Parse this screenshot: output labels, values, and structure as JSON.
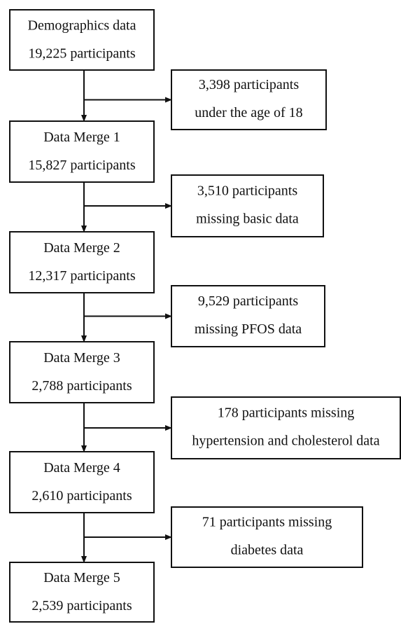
{
  "nodes": [
    {
      "lines": [
        "Demographics data",
        "19,225 participants"
      ]
    },
    {
      "lines": [
        "Data Merge 1",
        "15,827 participants"
      ]
    },
    {
      "lines": [
        "Data Merge 2",
        "12,317 participants"
      ]
    },
    {
      "lines": [
        "Data Merge 3",
        "2,788 participants"
      ]
    },
    {
      "lines": [
        "Data Merge 4",
        "2,610 participants"
      ]
    },
    {
      "lines": [
        "Data Merge 5",
        "2,539 participants"
      ]
    }
  ],
  "exclusions": [
    {
      "lines": [
        "3,398 participants",
        "under the age of 18"
      ]
    },
    {
      "lines": [
        "3,510 participants",
        "missing basic data"
      ]
    },
    {
      "lines": [
        "9,529 participants",
        "missing PFOS data"
      ]
    },
    {
      "lines": [
        "178 participants missing",
        "hypertension and cholesterol data"
      ]
    },
    {
      "lines": [
        "71 participants missing",
        "diabetes data"
      ]
    }
  ]
}
